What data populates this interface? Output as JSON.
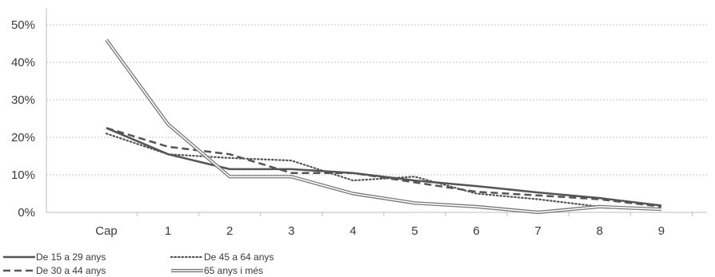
{
  "chart_data": {
    "type": "line",
    "categories": [
      "Cap",
      "1",
      "2",
      "3",
      "4",
      "5",
      "6",
      "7",
      "8",
      "9"
    ],
    "ylim": [
      0,
      50
    ],
    "yticks": [
      0,
      10,
      20,
      30,
      40,
      50
    ],
    "ytick_labels": [
      "0%",
      "10%",
      "20%",
      "30%",
      "40%",
      "50%"
    ],
    "grid": true,
    "legend_position": "bottom-left",
    "series": [
      {
        "name": "De 15 a 29 anys",
        "style": "solid",
        "color": "#555555",
        "values": [
          22.5,
          15.5,
          11.5,
          11.5,
          10.5,
          8.5,
          7.0,
          5.3,
          3.8,
          1.8
        ]
      },
      {
        "name": "De 30 a 44 anys",
        "style": "dashed",
        "color": "#555555",
        "values": [
          22.5,
          17.5,
          15.5,
          10.5,
          10.5,
          8.0,
          5.5,
          4.5,
          3.5,
          1.5
        ]
      },
      {
        "name": "De 45 a 64 anys",
        "style": "dotted",
        "color": "#555555",
        "values": [
          21.0,
          15.5,
          14.5,
          13.8,
          8.5,
          9.5,
          5.0,
          3.5,
          1.5,
          0.8
        ]
      },
      {
        "name": "65 anys i més",
        "style": "double",
        "color": "#777777",
        "values": [
          46.0,
          23.5,
          9.5,
          9.5,
          5.0,
          2.5,
          1.5,
          0.0,
          1.5,
          0.8
        ]
      }
    ]
  }
}
